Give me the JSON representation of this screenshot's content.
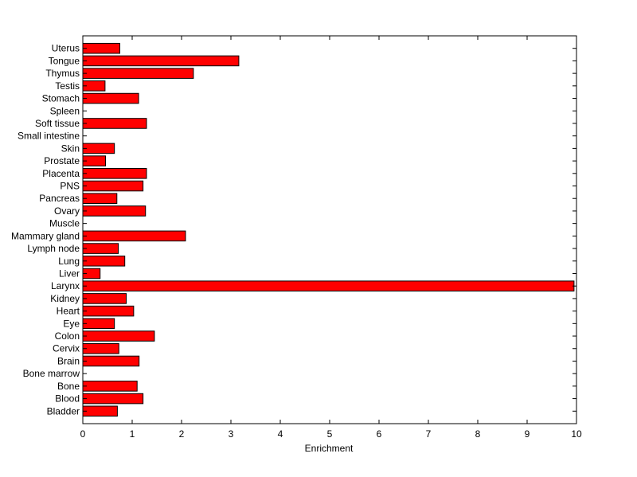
{
  "chart_data": {
    "type": "bar",
    "orientation": "horizontal",
    "title": "",
    "xlabel": "Enrichment",
    "ylabel": "",
    "xlim": [
      0,
      10
    ],
    "xticks": [
      "0",
      "1",
      "2",
      "3",
      "4",
      "5",
      "6",
      "7",
      "8",
      "9",
      "10"
    ],
    "grid": false,
    "legend": "none",
    "bar_color": "#ff0000",
    "edge_color": "#000000",
    "categories": [
      "Bladder",
      "Blood",
      "Bone",
      "Bone marrow",
      "Brain",
      "Cervix",
      "Colon",
      "Eye",
      "Heart",
      "Kidney",
      "Larynx",
      "Liver",
      "Lung",
      "Lymph node",
      "Mammary gland",
      "Muscle",
      "Ovary",
      "Pancreas",
      "PNS",
      "Placenta",
      "Prostate",
      "Skin",
      "Small intestine",
      "Soft tissue",
      "Spleen",
      "Stomach",
      "Testis",
      "Thymus",
      "Tongue",
      "Uterus"
    ],
    "values": [
      0.7,
      1.22,
      1.1,
      0,
      1.14,
      0.73,
      1.45,
      0.64,
      1.03,
      0.88,
      9.95,
      0.35,
      0.85,
      0.72,
      2.08,
      0,
      1.27,
      0.69,
      1.22,
      1.29,
      0.46,
      0.64,
      0,
      1.29,
      0,
      1.13,
      0.45,
      2.24,
      3.16,
      0.75
    ]
  }
}
